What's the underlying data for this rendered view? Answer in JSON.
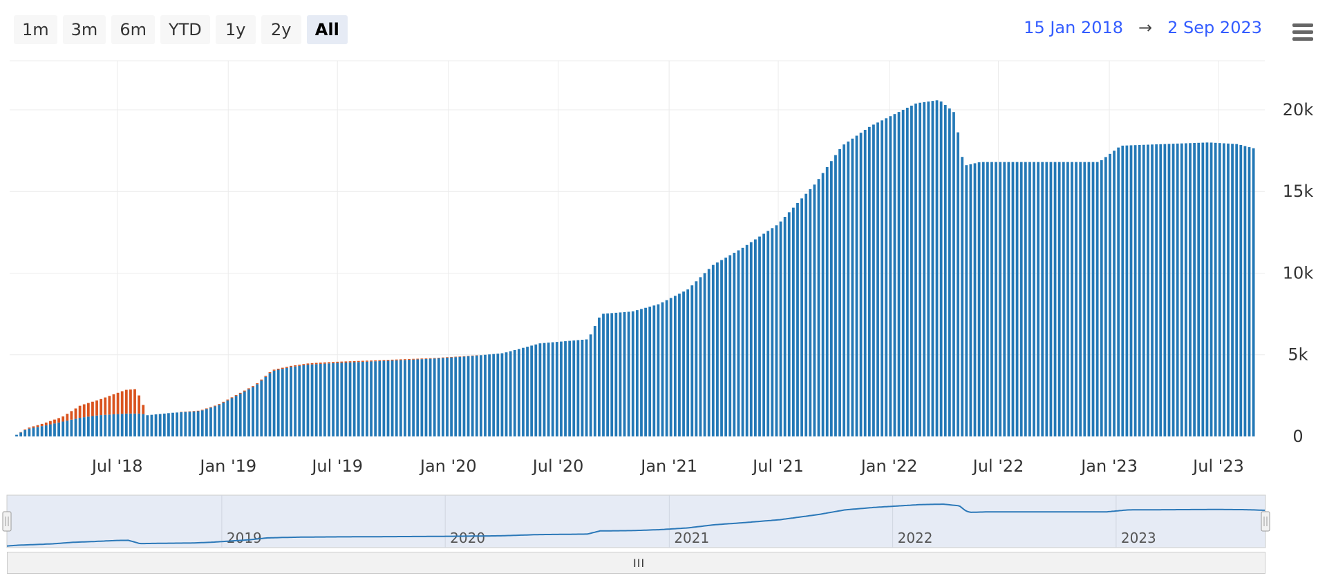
{
  "range_selector": {
    "buttons": [
      "1m",
      "3m",
      "6m",
      "YTD",
      "1y",
      "2y",
      "All"
    ],
    "selected": "All"
  },
  "date_range": {
    "from": "15 Jan 2018",
    "arrow": "→",
    "to": "2 Sep 2023"
  },
  "menu": {
    "icon": "hamburger-menu-icon"
  },
  "colors": {
    "series_primary": "#2378b6",
    "series_secondary": "#d9531e",
    "navigator_fill": "#e6ebf5",
    "navigator_line": "#2b78b8",
    "grid": "#ebebeb"
  },
  "chart_data": {
    "type": "bar",
    "stacked": true,
    "title": "",
    "xlabel": "",
    "ylabel": "",
    "ylim": [
      0,
      23000
    ],
    "xlim": [
      "2018-01-15",
      "2023-09-02"
    ],
    "y_ticks": [
      {
        "value": 0,
        "label": "0"
      },
      {
        "value": 5000,
        "label": "5k"
      },
      {
        "value": 10000,
        "label": "10k"
      },
      {
        "value": 15000,
        "label": "15k"
      },
      {
        "value": 20000,
        "label": "20k"
      }
    ],
    "x_ticks": [
      {
        "date": "2018-07-01",
        "label": "Jul '18"
      },
      {
        "date": "2019-01-01",
        "label": "Jan '19"
      },
      {
        "date": "2019-07-01",
        "label": "Jul '19"
      },
      {
        "date": "2020-01-01",
        "label": "Jan '20"
      },
      {
        "date": "2020-07-01",
        "label": "Jul '20"
      },
      {
        "date": "2021-01-01",
        "label": "Jan '21"
      },
      {
        "date": "2021-07-01",
        "label": "Jul '21"
      },
      {
        "date": "2022-01-01",
        "label": "Jan '22"
      },
      {
        "date": "2022-07-01",
        "label": "Jul '22"
      },
      {
        "date": "2023-01-01",
        "label": "Jan '23"
      },
      {
        "date": "2023-07-01",
        "label": "Jul '23"
      }
    ],
    "grid": true,
    "legend": "none",
    "bar_interval": "weekly",
    "series": [
      {
        "values_by_date": [
          [
            "2018-01-15",
            100
          ],
          [
            "2018-02-01",
            450
          ],
          [
            "2018-03-01",
            650
          ],
          [
            "2018-04-01",
            900
          ],
          [
            "2018-05-01",
            1150
          ],
          [
            "2018-06-01",
            1300
          ],
          [
            "2018-07-15",
            1400
          ],
          [
            "2018-08-10",
            1400
          ],
          [
            "2018-08-20",
            1300
          ],
          [
            "2018-10-01",
            1450
          ],
          [
            "2018-11-15",
            1550
          ],
          [
            "2018-12-15",
            1900
          ],
          [
            "2019-01-15",
            2500
          ],
          [
            "2019-02-15",
            3100
          ],
          [
            "2019-03-15",
            4000
          ],
          [
            "2019-04-15",
            4250
          ],
          [
            "2019-05-15",
            4400
          ],
          [
            "2019-07-01",
            4500
          ],
          [
            "2019-09-01",
            4600
          ],
          [
            "2019-12-01",
            4750
          ],
          [
            "2020-02-01",
            4900
          ],
          [
            "2020-04-01",
            5100
          ],
          [
            "2020-06-01",
            5700
          ],
          [
            "2020-08-20",
            5950
          ],
          [
            "2020-09-10",
            7500
          ],
          [
            "2020-11-01",
            7650
          ],
          [
            "2020-12-15",
            8100
          ],
          [
            "2021-02-01",
            9000
          ],
          [
            "2021-03-15",
            10500
          ],
          [
            "2021-05-01",
            11500
          ],
          [
            "2021-07-01",
            13000
          ],
          [
            "2021-09-01",
            15500
          ],
          [
            "2021-10-15",
            17800
          ],
          [
            "2021-12-01",
            19000
          ],
          [
            "2022-02-15",
            20400
          ],
          [
            "2022-03-25",
            20600
          ],
          [
            "2022-04-20",
            19800
          ],
          [
            "2022-05-01",
            17200
          ],
          [
            "2022-05-08",
            16600
          ],
          [
            "2022-06-01",
            16800
          ],
          [
            "2022-12-15",
            16800
          ],
          [
            "2023-01-20",
            17800
          ],
          [
            "2023-04-01",
            17900
          ],
          [
            "2023-06-15",
            18000
          ],
          [
            "2023-08-01",
            17900
          ],
          [
            "2023-09-02",
            17600
          ]
        ]
      },
      {
        "values_by_date": [
          [
            "2018-01-15",
            0
          ],
          [
            "2018-02-01",
            50
          ],
          [
            "2018-03-01",
            150
          ],
          [
            "2018-04-01",
            300
          ],
          [
            "2018-05-01",
            750
          ],
          [
            "2018-06-01",
            950
          ],
          [
            "2018-07-15",
            1450
          ],
          [
            "2018-08-01",
            1500
          ],
          [
            "2018-08-10",
            800
          ],
          [
            "2018-08-20",
            0
          ],
          [
            "2019-01-01",
            50
          ],
          [
            "2019-06-01",
            80
          ],
          [
            "2020-01-01",
            30
          ],
          [
            "2020-06-01",
            0
          ],
          [
            "2023-09-02",
            0
          ]
        ]
      }
    ]
  },
  "navigator": {
    "labels": [
      "2019",
      "2020",
      "2021",
      "2022",
      "2023"
    ],
    "handle_glyph": "||"
  },
  "scrollbar": {
    "grip_glyph": "III"
  }
}
